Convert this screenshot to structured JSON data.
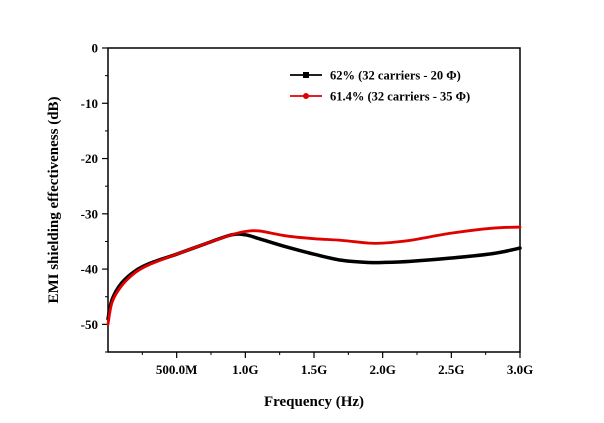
{
  "chart_data": {
    "type": "line",
    "xlabel": "Frequency (Hz)",
    "ylabel": "EMI shielding effectiveness (dB)",
    "xlim": [
      0,
      3.0
    ],
    "ylim": [
      -55,
      0
    ],
    "x_ticks": [
      {
        "value": 0.5,
        "label": "500.0M"
      },
      {
        "value": 1.0,
        "label": "1.0G"
      },
      {
        "value": 1.5,
        "label": "1.5G"
      },
      {
        "value": 2.0,
        "label": "2.0G"
      },
      {
        "value": 2.5,
        "label": "2.5G"
      },
      {
        "value": 3.0,
        "label": "3.0G"
      }
    ],
    "y_ticks": [
      {
        "value": 0,
        "label": "0"
      },
      {
        "value": -10,
        "label": "-10"
      },
      {
        "value": -20,
        "label": "-20"
      },
      {
        "value": -30,
        "label": "-30"
      },
      {
        "value": -40,
        "label": "-40"
      },
      {
        "value": -50,
        "label": "-50"
      }
    ],
    "grid": false,
    "legend_position": "top-right",
    "series": [
      {
        "name": "62% (32 carriers - 20 Φ)",
        "color": "#000000",
        "marker": "square",
        "x": [
          0.0,
          0.03,
          0.1,
          0.2,
          0.3,
          0.5,
          0.7,
          0.9,
          1.0,
          1.1,
          1.3,
          1.5,
          1.7,
          1.9,
          2.0,
          2.2,
          2.5,
          2.8,
          3.0
        ],
        "y": [
          -49,
          -45.5,
          -42.5,
          -40.3,
          -39,
          -37.3,
          -35.5,
          -33.8,
          -33.8,
          -34.5,
          -36,
          -37.3,
          -38.4,
          -38.8,
          -38.8,
          -38.6,
          -38,
          -37.2,
          -36.2
        ]
      },
      {
        "name": "61.4% (32 carriers - 35 Φ)",
        "color": "#e00000",
        "marker": "circle",
        "x": [
          0.0,
          0.03,
          0.1,
          0.2,
          0.3,
          0.5,
          0.7,
          0.9,
          1.0,
          1.1,
          1.3,
          1.5,
          1.7,
          1.9,
          2.0,
          2.2,
          2.5,
          2.8,
          3.0
        ],
        "y": [
          -50,
          -46,
          -43,
          -40.6,
          -39.2,
          -37.3,
          -35.5,
          -33.8,
          -33.2,
          -33.1,
          -34,
          -34.5,
          -34.8,
          -35.3,
          -35.3,
          -34.8,
          -33.5,
          -32.6,
          -32.4
        ]
      }
    ]
  }
}
